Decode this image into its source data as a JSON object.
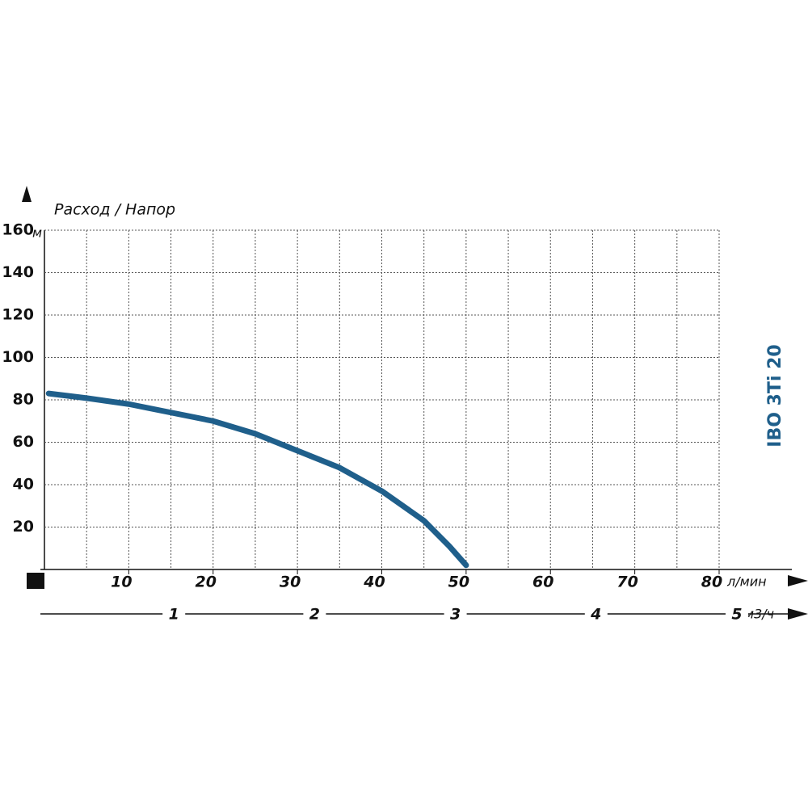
{
  "chart_data": {
    "type": "line",
    "title": "IBO 3Ti 20",
    "axis_label": "Расход / Напор",
    "y_unit": "м",
    "x_unit": "л/мин",
    "x2_unit": "м3/ч",
    "x": [
      0.5,
      5,
      10,
      15,
      20,
      25,
      30,
      35,
      40,
      45,
      48,
      50
    ],
    "series": [
      {
        "color": "#1f5f8b",
        "values": [
          83,
          80.8,
          78,
          74,
          70,
          64,
          56,
          48,
          37,
          23,
          11,
          2
        ]
      }
    ],
    "xlim": [
      0,
      80
    ],
    "xticks": [
      10,
      20,
      30,
      40,
      50,
      60,
      70,
      80
    ],
    "ylim": [
      0,
      160
    ],
    "yticks": [
      20,
      40,
      60,
      80,
      100,
      120,
      140,
      160
    ],
    "x2lim": [
      0,
      5
    ],
    "x2ticks": [
      1,
      2,
      3,
      4,
      5
    ],
    "grid": true
  }
}
